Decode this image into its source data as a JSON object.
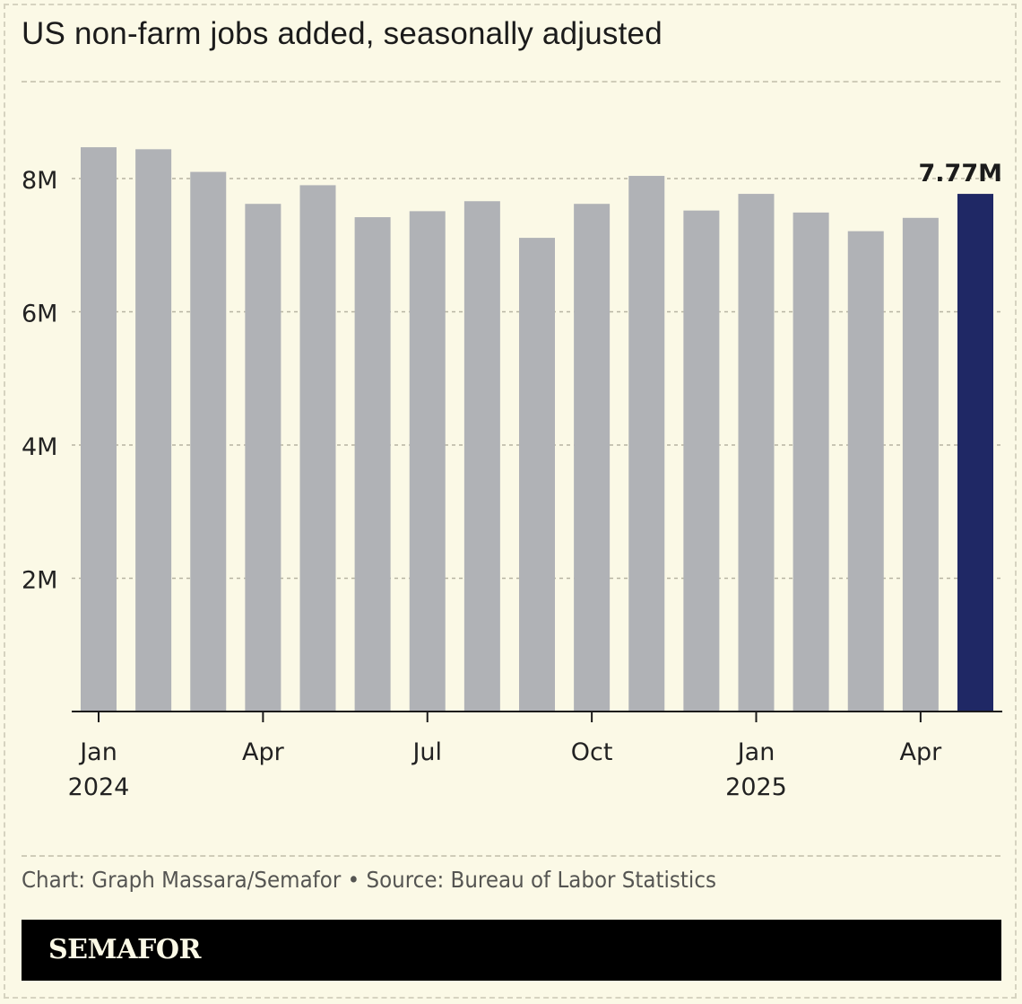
{
  "title": "US non-farm jobs added, seasonally adjusted",
  "footer": {
    "credit": "Chart: Graph Massara/Semafor • Source: Bureau of Labor Statistics",
    "brand": "SEMAFOR"
  },
  "colors": {
    "background": "#fbf9e6",
    "bar": "#b0b2b6",
    "highlight": "#1f2865",
    "axis": "#1b1b1b",
    "grid": "#b7b4a2"
  },
  "chart_data": {
    "type": "bar",
    "title": "US non-farm jobs added, seasonally adjusted",
    "xlabel": "",
    "ylabel": "",
    "ylim": [
      0,
      9
    ],
    "y_unit": "M",
    "yticks": [
      2,
      4,
      6,
      8
    ],
    "ytick_labels": [
      "2M",
      "4M",
      "6M",
      "8M"
    ],
    "categories": [
      "Jan 2024",
      "Feb 2024",
      "Mar 2024",
      "Apr 2024",
      "May 2024",
      "Jun 2024",
      "Jul 2024",
      "Aug 2024",
      "Sep 2024",
      "Oct 2024",
      "Nov 2024",
      "Dec 2024",
      "Jan 2025",
      "Feb 2025",
      "Mar 2025",
      "Apr 2025",
      "May 2025"
    ],
    "values": [
      8.47,
      8.44,
      8.1,
      7.62,
      7.9,
      7.42,
      7.51,
      7.66,
      7.11,
      7.62,
      8.04,
      7.52,
      7.77,
      7.49,
      7.21,
      7.41,
      7.77
    ],
    "highlight_index": 16,
    "annotation": "7.77M",
    "x_tick_labels": [
      {
        "index": 0,
        "month": "Jan",
        "year": "2024"
      },
      {
        "index": 3,
        "month": "Apr",
        "year": ""
      },
      {
        "index": 6,
        "month": "Jul",
        "year": ""
      },
      {
        "index": 9,
        "month": "Oct",
        "year": ""
      },
      {
        "index": 12,
        "month": "Jan",
        "year": "2025"
      },
      {
        "index": 15,
        "month": "Apr",
        "year": ""
      }
    ],
    "grid": true
  }
}
